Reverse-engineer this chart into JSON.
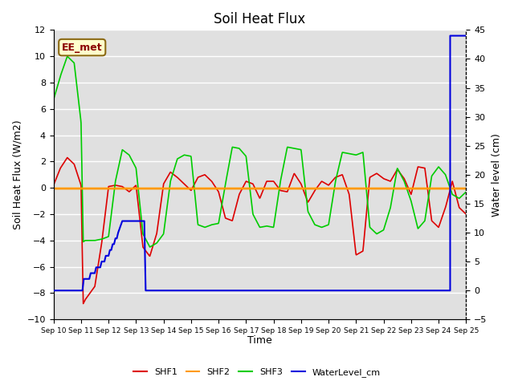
{
  "title": "Soil Heat Flux",
  "xlabel": "Time",
  "ylabel_left": "Soil Heat Flux (W/m2)",
  "ylabel_right": "Water level (cm)",
  "ylim_left": [
    -10,
    12
  ],
  "ylim_right": [
    -5,
    45
  ],
  "annotation": "EE_met",
  "bg_color": "#e0e0e0",
  "grid_color": "#ffffff",
  "c_shf1": "#dd0000",
  "c_shf2": "#ff9900",
  "c_shf3": "#00cc00",
  "c_water": "#0000dd",
  "left_yticks": [
    -10,
    -8,
    -6,
    -4,
    -2,
    0,
    2,
    4,
    6,
    8,
    10,
    12
  ],
  "right_yticks": [
    -5,
    0,
    5,
    10,
    15,
    20,
    25,
    30,
    35,
    40,
    45
  ],
  "xtick_labels": [
    "Sep 10",
    "Sep 11",
    "Sep 12",
    "Sep 13",
    "Sep 14",
    "Sep 15",
    "Sep 16",
    "Sep 17",
    "Sep 18",
    "Sep 19",
    "Sep 20",
    "Sep 21",
    "Sep 22",
    "Sep 23",
    "Sep 24",
    "Sep 25"
  ],
  "shf1_kx": [
    0.0,
    0.25,
    0.5,
    0.75,
    1.0,
    1.08,
    1.15,
    1.5,
    1.75,
    2.0,
    2.25,
    2.5,
    2.75,
    3.0,
    3.25,
    3.5,
    3.75,
    4.0,
    4.25,
    4.5,
    4.75,
    5.0,
    5.25,
    5.5,
    5.75,
    6.0,
    6.25,
    6.5,
    6.75,
    7.0,
    7.25,
    7.5,
    7.75,
    8.0,
    8.25,
    8.5,
    8.75,
    9.0,
    9.25,
    9.5,
    9.75,
    10.0,
    10.25,
    10.5,
    10.75,
    11.0,
    11.25,
    11.5,
    11.75,
    12.0,
    12.25,
    12.5,
    12.75,
    13.0,
    13.25,
    13.5,
    13.75,
    14.0,
    14.25,
    14.5,
    14.75,
    15.0
  ],
  "shf1_ky": [
    0.2,
    1.5,
    2.3,
    1.8,
    0.2,
    -8.8,
    -8.5,
    -7.5,
    -4.2,
    0.1,
    0.2,
    0.1,
    -0.3,
    0.2,
    -4.5,
    -5.2,
    -3.5,
    0.3,
    1.2,
    0.8,
    0.3,
    -0.2,
    0.8,
    1.0,
    0.5,
    -0.3,
    -2.3,
    -2.5,
    -0.5,
    0.5,
    0.3,
    -0.8,
    0.5,
    0.5,
    -0.2,
    -0.3,
    1.1,
    0.3,
    -1.1,
    -0.2,
    0.5,
    0.2,
    0.8,
    1.0,
    -0.5,
    -5.1,
    -4.8,
    0.8,
    1.1,
    0.7,
    0.5,
    1.4,
    0.7,
    -0.5,
    1.6,
    1.5,
    -2.5,
    -3.0,
    -1.5,
    0.5,
    -1.5,
    -2.0
  ],
  "shf3_kx": [
    0.0,
    0.25,
    0.5,
    0.75,
    1.0,
    1.08,
    1.15,
    1.5,
    1.75,
    2.0,
    2.25,
    2.5,
    2.75,
    3.0,
    3.25,
    3.5,
    3.75,
    4.0,
    4.25,
    4.5,
    4.75,
    5.0,
    5.25,
    5.5,
    5.75,
    6.0,
    6.25,
    6.5,
    6.75,
    7.0,
    7.25,
    7.5,
    7.75,
    8.0,
    8.25,
    8.5,
    8.75,
    9.0,
    9.25,
    9.5,
    9.75,
    10.0,
    10.25,
    10.5,
    10.75,
    11.0,
    11.25,
    11.5,
    11.75,
    12.0,
    12.25,
    12.5,
    12.75,
    13.0,
    13.25,
    13.5,
    13.75,
    14.0,
    14.25,
    14.5,
    14.75,
    15.0
  ],
  "shf3_ky": [
    6.7,
    8.5,
    10.0,
    9.5,
    5.0,
    -4.1,
    -4.0,
    -4.0,
    -3.9,
    -3.7,
    0.5,
    2.9,
    2.5,
    1.5,
    -3.5,
    -4.5,
    -4.2,
    -3.5,
    0.5,
    2.2,
    2.5,
    2.4,
    -2.8,
    -3.0,
    -2.8,
    -2.7,
    0.3,
    3.1,
    3.0,
    2.4,
    -2.0,
    -3.0,
    -2.9,
    -3.0,
    0.5,
    3.1,
    3.0,
    2.9,
    -1.8,
    -2.8,
    -3.0,
    -2.8,
    0.5,
    2.7,
    2.6,
    2.5,
    2.7,
    -3.0,
    -3.5,
    -3.2,
    -1.5,
    1.5,
    0.5,
    -1.0,
    -3.1,
    -2.5,
    0.9,
    1.6,
    1.0,
    -0.5,
    -0.8,
    -0.3
  ],
  "water_x": [
    0,
    1.05,
    1.1,
    1.3,
    1.35,
    1.5,
    1.55,
    1.7,
    1.75,
    1.85,
    1.9,
    2.0,
    2.05,
    2.1,
    2.15,
    2.2,
    2.25,
    2.3,
    2.35,
    2.5,
    3.3,
    3.35,
    14.42,
    14.42,
    15.0
  ],
  "water_cm": [
    0,
    0,
    2,
    2,
    3,
    3,
    4,
    4,
    5,
    5,
    6,
    6,
    7,
    7,
    8,
    8,
    9,
    9,
    10,
    12,
    12,
    0,
    0,
    44,
    44
  ],
  "shf2_val": -0.05
}
